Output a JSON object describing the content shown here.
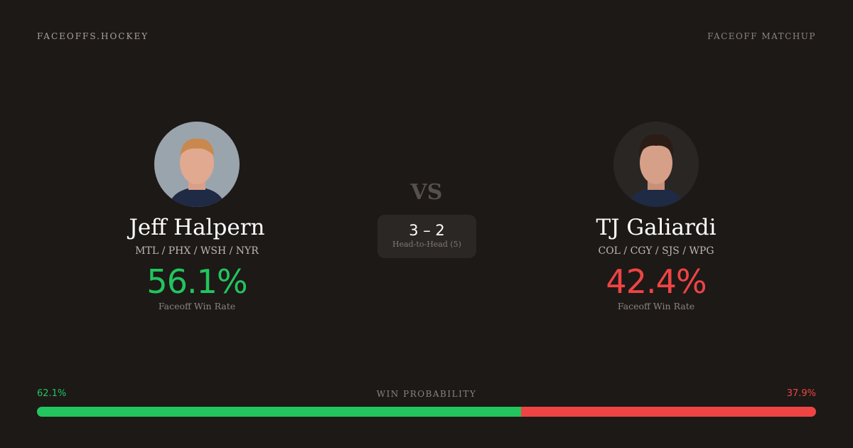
{
  "header": {
    "brand": "FACEOFFS.HOCKEY",
    "tag": "FACEOFF MATCHUP"
  },
  "colors": {
    "green": "#22c55e",
    "red": "#ef4444"
  },
  "players": [
    {
      "name": "Jeff Halpern",
      "teams": "MTL / PHX / WSH / NYR",
      "rate": "56.1%",
      "rate_label": "Faceoff Win Rate"
    },
    {
      "name": "TJ Galiardi",
      "teams": "COL / CGY / SJS / WPG",
      "rate": "42.4%",
      "rate_label": "Faceoff Win Rate"
    }
  ],
  "vs": "VS",
  "head_to_head": {
    "score": "3 – 2",
    "label": "Head-to-Head (5)"
  },
  "win_probability": {
    "label": "WIN PROBABILITY",
    "left": "62.1%",
    "right": "37.9%",
    "left_fraction": 0.621
  }
}
